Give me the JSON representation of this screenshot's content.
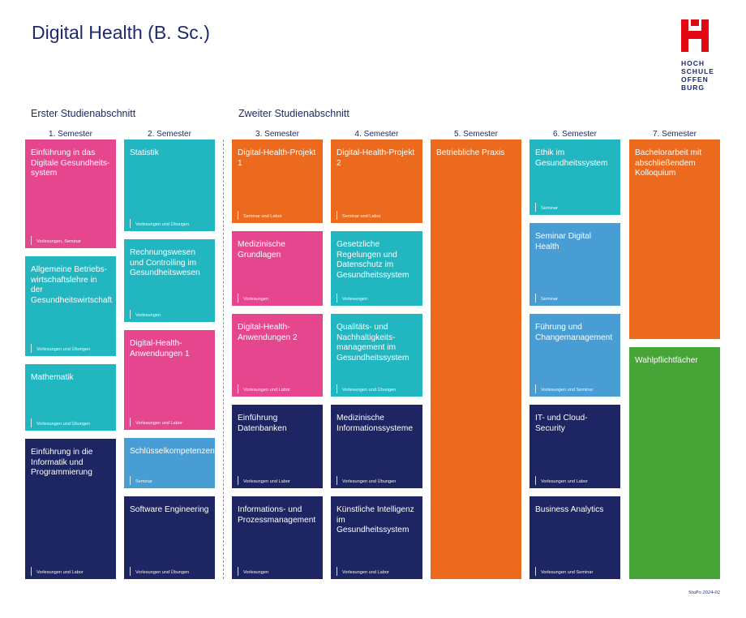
{
  "title": "Digital Health (B. Sc.)",
  "logo": {
    "lines": [
      "HOCH",
      "SCHULE",
      "OFFEN",
      "BURG"
    ],
    "color": "#e30613"
  },
  "sections": {
    "first": "Erster Studienabschnitt",
    "second": "Zweiter Studienabschnitt"
  },
  "semesters": [
    "1. Semester",
    "2. Semester",
    "3. Semester",
    "4. Semester",
    "5. Semester",
    "6. Semester",
    "7. Semester"
  ],
  "colors": {
    "pink": "#e5468d",
    "teal": "#22b6c1",
    "navy": "#1d2562",
    "orange": "#ec6a1e",
    "blue": "#479dd4",
    "green": "#46a536"
  },
  "modules": {
    "s1": [
      {
        "title": "Einführung in das Digitale Gesundheits-system",
        "sub": "Vorlesungen, Seminar"
      },
      {
        "title": "Allgemeine Betriebs-wirtschaftslehre in der Gesundheitswirtschaft",
        "sub": "Vorlesungen und Übungen"
      },
      {
        "title": "Mathematik",
        "sub": "Vorlesungen und Übungen"
      },
      {
        "title": "Einführung in die Informatik und Programmierung",
        "sub": "Vorlesungen und Labor"
      }
    ],
    "s2": [
      {
        "title": "Statistik",
        "sub": "Vorlesungen und Übungen"
      },
      {
        "title": "Rechnungswesen und Controlling im Gesundheitswesen",
        "sub": "Vorlesungen"
      },
      {
        "title": "Digital-Health-Anwendungen 1",
        "sub": "Vorlesungen und Labor"
      },
      {
        "title": "Schlüsselkompetenzen",
        "sub": "Seminar"
      },
      {
        "title": "Software Engineering",
        "sub": "Vorlesungen und Übungen"
      }
    ],
    "s3": [
      {
        "title": "Digital-Health-Projekt 1",
        "sub": "Seminar und Labor"
      },
      {
        "title": "Medizinische Grundlagen",
        "sub": "Vorlesungen"
      },
      {
        "title": "Digital-Health-Anwendungen 2",
        "sub": "Vorlesungen und Labor"
      },
      {
        "title": "Einführung Datenbanken",
        "sub": "Vorlesungen und Labor"
      },
      {
        "title": "Informations- und Prozessmanagement",
        "sub": "Vorlesungen"
      }
    ],
    "s4": [
      {
        "title": "Digital-Health-Projekt 2",
        "sub": "Seminar und Labor"
      },
      {
        "title": "Gesetzliche Regelungen und Datenschutz im Gesundheitssystem",
        "sub": "Vorlesungen"
      },
      {
        "title": "Qualitäts- und Nachhaltigkeits-management im Gesundheitssystem",
        "sub": "Vorlesungen und Übungen"
      },
      {
        "title": "Medizinische Informationssysteme",
        "sub": "Vorlesungen und Übungen"
      },
      {
        "title": "Künstliche Intelligenz im Gesundheitssystem",
        "sub": "Vorlesungen und Labor"
      }
    ],
    "s5": [
      {
        "title": "Betriebliche Praxis"
      }
    ],
    "s6": [
      {
        "title": "Ethik im Gesundheitssystem",
        "sub": "Seminar"
      },
      {
        "title": "Seminar Digital Health",
        "sub": "Seminar"
      },
      {
        "title": "Führung und Changemanagement",
        "sub": "Vorlesungen und Seminar"
      },
      {
        "title": "IT- und Cloud-Security",
        "sub": "Vorlesungen und Labor"
      },
      {
        "title": "Business Analytics",
        "sub": "Vorlesungen und Seminar"
      }
    ],
    "s7": [
      {
        "title": "Bachelorarbeit mit abschließendem Kolloquium"
      },
      {
        "title": "Wahlpflichtfächer"
      }
    ]
  },
  "footer": "StuPo 2024-02"
}
